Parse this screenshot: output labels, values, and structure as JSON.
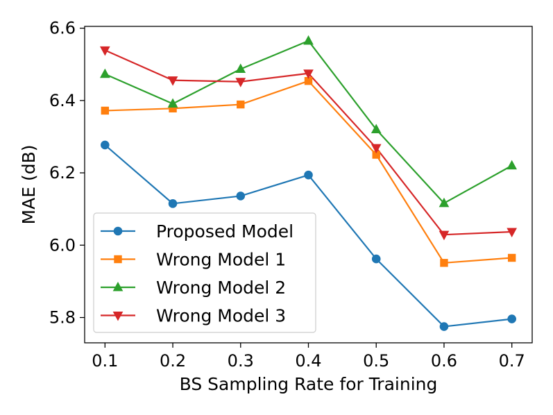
{
  "chart_data": {
    "type": "line",
    "title": "",
    "xlabel": "BS Sampling Rate for Training",
    "ylabel": "MAE (dB)",
    "x": [
      0.1,
      0.2,
      0.3,
      0.4,
      0.5,
      0.6,
      0.7
    ],
    "x_tick_labels": [
      "0.1",
      "0.2",
      "0.3",
      "0.4",
      "0.5",
      "0.6",
      "0.7"
    ],
    "y_ticks": [
      5.8,
      6.0,
      6.2,
      6.4,
      6.6
    ],
    "y_tick_labels": [
      "5.8",
      "6.0",
      "6.2",
      "6.4",
      "6.6"
    ],
    "xlim": [
      0.07,
      0.73
    ],
    "ylim": [
      5.73,
      6.605
    ],
    "grid": false,
    "legend_position": "lower-left",
    "series": [
      {
        "name": "Proposed Model",
        "color": "#1f77b4",
        "marker": "circle",
        "values": [
          6.277,
          6.115,
          6.136,
          6.194,
          5.962,
          5.775,
          5.796
        ]
      },
      {
        "name": "Wrong Model 1",
        "color": "#ff7f0e",
        "marker": "square",
        "values": [
          6.372,
          6.378,
          6.389,
          6.454,
          6.25,
          5.951,
          5.965
        ]
      },
      {
        "name": "Wrong Model 2",
        "color": "#2ca02c",
        "marker": "triangle-up",
        "values": [
          6.473,
          6.391,
          6.487,
          6.565,
          6.32,
          6.116,
          6.22
        ]
      },
      {
        "name": "Wrong Model 3",
        "color": "#d62728",
        "marker": "triangle-down",
        "values": [
          6.539,
          6.456,
          6.452,
          6.475,
          6.269,
          6.029,
          6.037
        ]
      }
    ]
  }
}
